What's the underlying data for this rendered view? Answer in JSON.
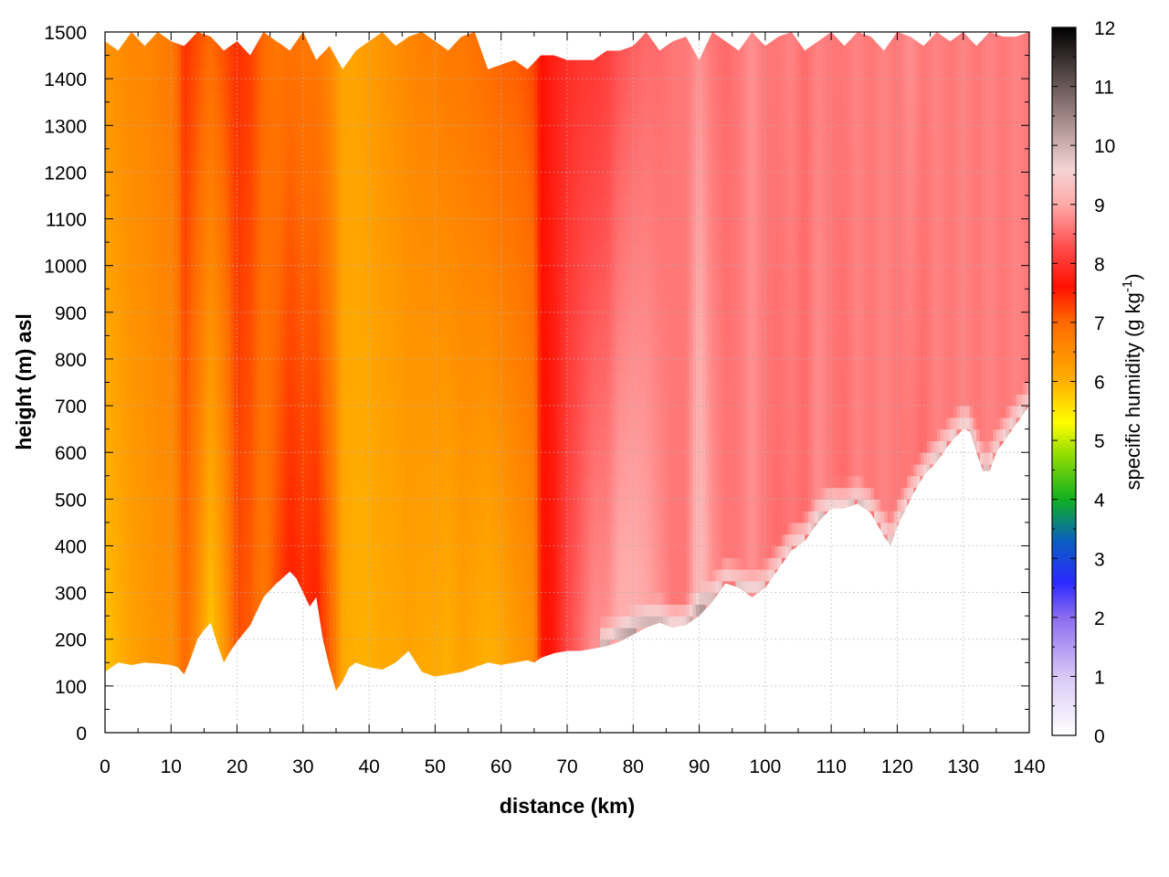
{
  "chart_data": {
    "type": "heatmap",
    "title": "",
    "xlabel": "distance (km)",
    "ylabel": "height (m) asl",
    "xlim": [
      0,
      140
    ],
    "ylim": [
      0,
      1500
    ],
    "x_ticks": [
      "0",
      "10",
      "20",
      "30",
      "40",
      "50",
      "60",
      "70",
      "80",
      "90",
      "100",
      "110",
      "120",
      "130",
      "140"
    ],
    "y_ticks": [
      "0",
      "100",
      "200",
      "300",
      "400",
      "500",
      "600",
      "700",
      "800",
      "900",
      "1000",
      "1100",
      "1200",
      "1300",
      "1400",
      "1500"
    ],
    "grid": true,
    "colorbar": {
      "label_main": "specific humidity (g kg",
      "label_sup": "-1",
      "label_end": ")",
      "range": [
        0,
        12
      ],
      "ticks": [
        "0",
        "1",
        "2",
        "3",
        "4",
        "5",
        "6",
        "7",
        "8",
        "9",
        "10",
        "11",
        "12"
      ],
      "colormap": [
        {
          "v": 0,
          "color": "#ffffff"
        },
        {
          "v": 1,
          "color": "#d8c8f6"
        },
        {
          "v": 2,
          "color": "#8c6cf0"
        },
        {
          "v": 2.6,
          "color": "#2a28ff"
        },
        {
          "v": 3.3,
          "color": "#0a60c0"
        },
        {
          "v": 4,
          "color": "#10b020"
        },
        {
          "v": 4.8,
          "color": "#9adf00"
        },
        {
          "v": 5.3,
          "color": "#ffff00"
        },
        {
          "v": 6,
          "color": "#ffb000"
        },
        {
          "v": 7,
          "color": "#ff6a00"
        },
        {
          "v": 7.6,
          "color": "#ff1000"
        },
        {
          "v": 8.3,
          "color": "#ff5050"
        },
        {
          "v": 9,
          "color": "#ffaaaa"
        },
        {
          "v": 9.6,
          "color": "#f4d4d4"
        },
        {
          "v": 10.5,
          "color": "#9e8484"
        },
        {
          "v": 12,
          "color": "#000000"
        }
      ]
    },
    "ground_profile": {
      "x": [
        0,
        2,
        4,
        6,
        8,
        10,
        11,
        12,
        13,
        14,
        15,
        16,
        17,
        18,
        19,
        20,
        22,
        24,
        26,
        28,
        29,
        30,
        31,
        32,
        33,
        34,
        35,
        36,
        37,
        38,
        40,
        42,
        44,
        46,
        48,
        50,
        52,
        54,
        56,
        58,
        60,
        62,
        64,
        65,
        66,
        68,
        70,
        72,
        74,
        76,
        78,
        80,
        82,
        84,
        86,
        88,
        90,
        92,
        94,
        96,
        98,
        100,
        102,
        104,
        106,
        108,
        110,
        112,
        114,
        116,
        118,
        119,
        120,
        122,
        124,
        126,
        128,
        130,
        131,
        132,
        133,
        134,
        135,
        136,
        138,
        140
      ],
      "z": [
        130,
        150,
        145,
        150,
        148,
        145,
        140,
        125,
        160,
        200,
        220,
        235,
        190,
        150,
        175,
        195,
        230,
        290,
        320,
        345,
        330,
        300,
        270,
        290,
        200,
        140,
        90,
        110,
        140,
        150,
        140,
        135,
        150,
        175,
        130,
        120,
        125,
        130,
        140,
        150,
        145,
        150,
        155,
        150,
        160,
        170,
        175,
        175,
        180,
        185,
        195,
        210,
        225,
        235,
        225,
        230,
        250,
        280,
        320,
        310,
        290,
        310,
        350,
        390,
        410,
        450,
        480,
        480,
        490,
        470,
        420,
        400,
        440,
        500,
        550,
        580,
        620,
        650,
        645,
        600,
        560,
        560,
        600,
        620,
        660,
        700
      ]
    },
    "top_profile": {
      "x": [
        0,
        2,
        4,
        6,
        8,
        10,
        12,
        14,
        16,
        18,
        20,
        22,
        24,
        26,
        28,
        30,
        32,
        34,
        36,
        38,
        40,
        42,
        44,
        46,
        48,
        50,
        52,
        54,
        56,
        58,
        60,
        62,
        64,
        66,
        68,
        70,
        72,
        74,
        76,
        78,
        80,
        82,
        84,
        86,
        88,
        90,
        92,
        94,
        96,
        98,
        100,
        102,
        104,
        106,
        108,
        110,
        112,
        114,
        116,
        118,
        120,
        122,
        124,
        126,
        128,
        130,
        132,
        134,
        136,
        138,
        140
      ],
      "z": [
        1480,
        1460,
        1500,
        1470,
        1500,
        1480,
        1470,
        1500,
        1490,
        1460,
        1480,
        1450,
        1500,
        1480,
        1460,
        1500,
        1440,
        1470,
        1420,
        1460,
        1480,
        1500,
        1470,
        1490,
        1500,
        1480,
        1460,
        1490,
        1500,
        1420,
        1430,
        1440,
        1420,
        1450,
        1450,
        1440,
        1440,
        1440,
        1460,
        1460,
        1470,
        1500,
        1460,
        1480,
        1490,
        1440,
        1500,
        1480,
        1460,
        1500,
        1470,
        1490,
        1500,
        1460,
        1480,
        1500,
        1470,
        1500,
        1490,
        1460,
        1500,
        1490,
        1470,
        1500,
        1480,
        1500,
        1470,
        1500,
        1490,
        1490,
        1500
      ]
    },
    "columns": {
      "x": [
        0,
        2,
        4,
        6,
        8,
        10,
        11,
        12,
        14,
        16,
        18,
        20,
        22,
        24,
        26,
        28,
        30,
        32,
        34,
        35,
        36,
        38,
        40,
        42,
        44,
        46,
        48,
        50,
        52,
        54,
        56,
        58,
        60,
        62,
        64,
        65,
        66,
        68,
        70,
        72,
        74,
        76,
        78,
        80,
        82,
        84,
        86,
        88,
        90,
        92,
        94,
        96,
        98,
        100,
        102,
        104,
        106,
        108,
        110,
        112,
        114,
        116,
        118,
        120,
        122,
        124,
        126,
        128,
        130,
        132,
        134,
        136,
        138,
        140
      ],
      "value_low": [
        5.8,
        6.0,
        6.2,
        6.3,
        6.4,
        6.4,
        6.6,
        7.0,
        6.5,
        5.8,
        6.3,
        7.2,
        7.1,
        6.8,
        7.2,
        7.5,
        7.4,
        7.5,
        7.1,
        6.7,
        6.1,
        6.0,
        6.0,
        6.1,
        6.1,
        6.2,
        6.1,
        6.1,
        6.0,
        6.2,
        6.1,
        6.0,
        6.1,
        6.3,
        6.4,
        6.5,
        7.5,
        7.7,
        8.2,
        8.5,
        8.8,
        8.8,
        9.1,
        9.1,
        9.0,
        8.8,
        8.6,
        8.6,
        9.3,
        8.8,
        8.6,
        8.6,
        8.8,
        8.6,
        8.5,
        8.6,
        8.5,
        8.8,
        8.6,
        8.5,
        8.7,
        8.6,
        8.7,
        8.6,
        8.6,
        8.5,
        8.7,
        8.6,
        8.7,
        8.6,
        8.7,
        8.6,
        8.7,
        8.6
      ],
      "value_high": [
        6.4,
        6.5,
        6.6,
        6.6,
        6.7,
        6.8,
        7.0,
        7.4,
        7.2,
        7.0,
        7.2,
        7.4,
        7.3,
        7.0,
        6.8,
        6.9,
        6.8,
        6.8,
        6.6,
        6.4,
        6.2,
        6.2,
        6.3,
        6.4,
        6.5,
        6.6,
        6.7,
        6.7,
        6.8,
        6.8,
        6.9,
        7.0,
        7.1,
        7.1,
        7.2,
        7.3,
        7.6,
        7.8,
        7.9,
        8.0,
        8.0,
        8.1,
        8.3,
        8.4,
        8.5,
        8.5,
        8.6,
        8.6,
        8.8,
        8.6,
        8.5,
        8.6,
        8.8,
        8.6,
        8.6,
        8.7,
        8.5,
        8.7,
        8.6,
        8.6,
        8.7,
        8.6,
        8.7,
        8.6,
        8.8,
        8.6,
        8.7,
        8.6,
        8.7,
        8.6,
        8.7,
        8.6,
        8.7,
        8.6
      ]
    }
  }
}
